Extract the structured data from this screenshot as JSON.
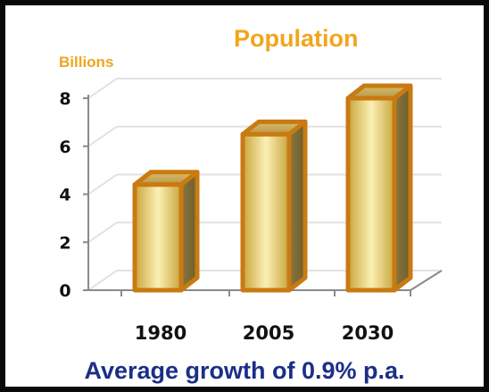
{
  "chart_data": {
    "type": "bar",
    "title": "Population",
    "ylabel": "Billions",
    "xlabel": "",
    "categories": [
      "1980",
      "2005",
      "2030"
    ],
    "values": [
      4.4,
      6.5,
      8.0
    ],
    "ylim": [
      0,
      8
    ],
    "yticks": [
      "0",
      "2",
      "4",
      "6",
      "8"
    ],
    "grid": true,
    "subtitle": "Average growth of 0.9% p.a."
  },
  "colors": {
    "bar_edge": "#c97a10",
    "bar_fill_light": "#fbf0b4",
    "bar_fill_dark": "#c9a53e",
    "title": "#f2a51c",
    "subtitle": "#1b2f86",
    "frame": "#0a0a0a"
  }
}
